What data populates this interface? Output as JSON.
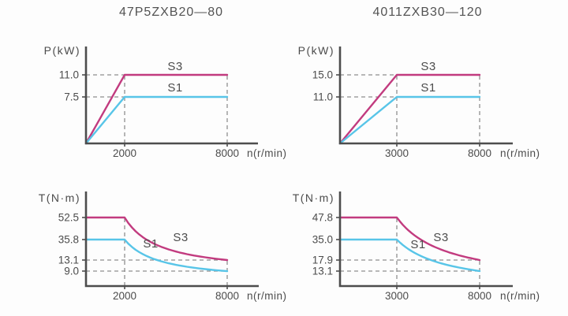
{
  "page": {
    "background": "#fdfdfd"
  },
  "colors": {
    "s3": "#c23b7f",
    "s1": "#58c5e8",
    "axis": "#4d4d4d",
    "dash": "#8f8f8f",
    "text": "#4c4c4c"
  },
  "chart_data": [
    {
      "type": "line",
      "kind": "power",
      "title": "47P5ZXB20—80",
      "ylabel": "P(kW)",
      "xlabel": "n(r/min)",
      "knee_rpm": 2000,
      "max_rpm": 8000,
      "y_tick_labels": [
        "11.0",
        "7.5"
      ],
      "x_tick_labels": [
        "2000",
        "8000"
      ],
      "grid": "dashed-guides",
      "legend_position": "inline-above-curves",
      "series": [
        {
          "name": "S3",
          "color": "#c23b7f",
          "points": [
            [
              0,
              0
            ],
            [
              2000,
              11.0
            ],
            [
              8000,
              11.0
            ]
          ]
        },
        {
          "name": "S1",
          "color": "#58c5e8",
          "points": [
            [
              0,
              0
            ],
            [
              2000,
              7.5
            ],
            [
              8000,
              7.5
            ]
          ]
        }
      ]
    },
    {
      "type": "line",
      "kind": "power",
      "title": "4011ZXB30—120",
      "ylabel": "P(kW)",
      "xlabel": "n(r/min)",
      "knee_rpm": 3000,
      "max_rpm": 8000,
      "y_tick_labels": [
        "15.0",
        "11.0"
      ],
      "x_tick_labels": [
        "3000",
        "8000"
      ],
      "grid": "dashed-guides",
      "legend_position": "inline-above-curves",
      "series": [
        {
          "name": "S3",
          "color": "#c23b7f",
          "points": [
            [
              0,
              0
            ],
            [
              3000,
              15.0
            ],
            [
              8000,
              15.0
            ]
          ]
        },
        {
          "name": "S1",
          "color": "#58c5e8",
          "points": [
            [
              0,
              0
            ],
            [
              3000,
              11.0
            ],
            [
              8000,
              11.0
            ]
          ]
        }
      ]
    },
    {
      "type": "line",
      "kind": "torque",
      "ylabel": "T(N·m)",
      "xlabel": "n(r/min)",
      "knee_rpm": 2000,
      "max_rpm": 8000,
      "y_tick_labels": [
        "52.5",
        "35.8",
        "13.1",
        "9.0"
      ],
      "x_tick_labels": [
        "2000",
        "8000"
      ],
      "grid": "dashed-guides",
      "legend_position": "inline-above-curves",
      "series": [
        {
          "name": "S3",
          "color": "#c23b7f",
          "points": [
            [
              0,
              52.5
            ],
            [
              2000,
              52.5
            ],
            [
              8000,
              13.1
            ]
          ],
          "decay": "hyperbolic"
        },
        {
          "name": "S1",
          "color": "#58c5e8",
          "points": [
            [
              0,
              35.8
            ],
            [
              2000,
              35.8
            ],
            [
              8000,
              9.0
            ]
          ],
          "decay": "hyperbolic"
        }
      ]
    },
    {
      "type": "line",
      "kind": "torque",
      "ylabel": "T(N·m)",
      "xlabel": "n(r/min)",
      "knee_rpm": 3000,
      "max_rpm": 8000,
      "y_tick_labels": [
        "47.8",
        "35.0",
        "17.9",
        "13.1"
      ],
      "x_tick_labels": [
        "3000",
        "8000"
      ],
      "grid": "dashed-guides",
      "legend_position": "inline-above-curves",
      "series": [
        {
          "name": "S3",
          "color": "#c23b7f",
          "points": [
            [
              0,
              47.8
            ],
            [
              3000,
              47.8
            ],
            [
              8000,
              17.9
            ]
          ],
          "decay": "hyperbolic"
        },
        {
          "name": "S1",
          "color": "#58c5e8",
          "points": [
            [
              0,
              35.0
            ],
            [
              3000,
              35.0
            ],
            [
              8000,
              13.1
            ]
          ],
          "decay": "hyperbolic"
        }
      ]
    }
  ]
}
